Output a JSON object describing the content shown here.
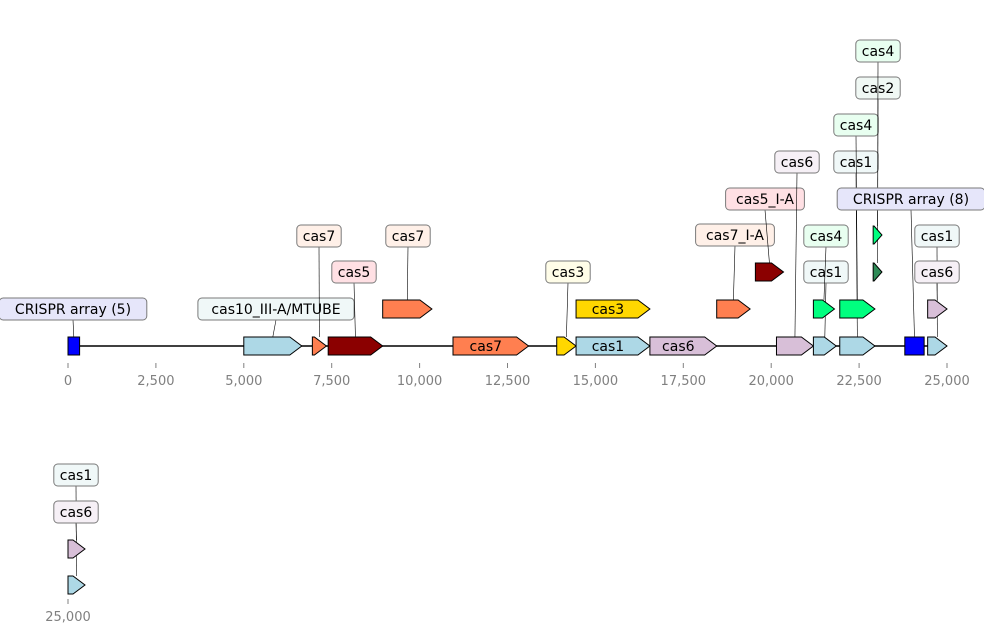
{
  "chart_data": {
    "type": "gene-map",
    "tracks": [
      {
        "name": "",
        "xrange": [
          0,
          25000
        ],
        "ticks": [
          0,
          2500,
          5000,
          7500,
          10000,
          12500,
          15000,
          17500,
          20000,
          22500,
          25000
        ],
        "tick_labels": [
          "0",
          "2,500",
          "5,000",
          "7,500",
          "10,000",
          "12,500",
          "15,000",
          "17,500",
          "20,000",
          "22,500",
          "25,000"
        ],
        "features": [
          {
            "id": "crispr5",
            "start": 0,
            "end": 330,
            "strand": 0,
            "row": 0,
            "color": "#0000ff",
            "label": "CRISPR array (5)",
            "label_pos": "above",
            "label_fill": "#e6e6fa"
          },
          {
            "id": "cas10",
            "start": 5000,
            "end": 6650,
            "strand": 1,
            "row": 0,
            "color": "#add8e6",
            "label": "cas10_III-A/MTUBE",
            "label_pos": "above",
            "label_fill": "#f0f8f8"
          },
          {
            "id": "cas7a",
            "start": 6950,
            "end": 7350,
            "strand": 1,
            "row": 0,
            "color": "#ff7f50",
            "label": "cas7",
            "label_pos": "above",
            "label_fill": "#fff0e8"
          },
          {
            "id": "cas5",
            "start": 7400,
            "end": 8950,
            "strand": 1,
            "row": 0,
            "color": "#8b0000",
            "label": "cas5",
            "label_pos": "above",
            "label_fill": "#ffe0e4"
          },
          {
            "id": "cas7b",
            "start": 8950,
            "end": 10350,
            "strand": 1,
            "row": 1,
            "color": "#ff7f50",
            "label": "cas7",
            "label_pos": "above",
            "label_fill": "#fff0e8"
          },
          {
            "id": "cas7c",
            "start": 10950,
            "end": 13100,
            "strand": 1,
            "row": 0,
            "color": "#ff7f50",
            "label": "cas7",
            "label_pos": "inside"
          },
          {
            "id": "cas3a",
            "start": 13900,
            "end": 14450,
            "strand": 1,
            "row": 0,
            "color": "#ffd700",
            "label": "cas3",
            "label_pos": "above",
            "label_fill": "#fffde8"
          },
          {
            "id": "cas3b",
            "start": 14450,
            "end": 16550,
            "strand": 1,
            "row": 1,
            "color": "#ffd700",
            "label": "cas3",
            "label_pos": "inside"
          },
          {
            "id": "cas1a",
            "start": 14450,
            "end": 16550,
            "strand": 1,
            "row": 0,
            "color": "#add8e6",
            "label": "cas1",
            "label_pos": "inside"
          },
          {
            "id": "cas6a",
            "start": 16550,
            "end": 18450,
            "strand": 1,
            "row": 0,
            "color": "#d8bfd8",
            "label": "cas6",
            "label_pos": "inside"
          },
          {
            "id": "cas7ia",
            "start": 18450,
            "end": 19400,
            "strand": 1,
            "row": 1,
            "color": "#ff7f50",
            "label": "cas7_I-A",
            "label_pos": "above",
            "label_fill": "#fff0e8"
          },
          {
            "id": "cas5ia",
            "start": 19550,
            "end": 20350,
            "strand": 1,
            "row": 2,
            "color": "#8b0000",
            "label": "cas5_I-A",
            "label_pos": "above",
            "label_fill": "#ffe0e4"
          },
          {
            "id": "cas6b",
            "start": 20150,
            "end": 21200,
            "strand": 1,
            "row": 0,
            "color": "#d8bfd8",
            "label": "cas6",
            "label_pos": "above",
            "label_fill": "#f6f0f6"
          },
          {
            "id": "cas1b",
            "start": 21200,
            "end": 21850,
            "strand": 1,
            "row": 0,
            "color": "#add8e6",
            "label": "cas1",
            "label_pos": "above",
            "label_fill": "#f0f8f8"
          },
          {
            "id": "cas4a",
            "start": 21200,
            "end": 21800,
            "strand": 1,
            "row": 1,
            "color": "#00ff7f",
            "label": "cas4",
            "label_pos": "above",
            "label_fill": "#e8fff0"
          },
          {
            "id": "cas1c",
            "start": 21950,
            "end": 22950,
            "strand": 1,
            "row": 0,
            "color": "#add8e6",
            "label": "cas1",
            "label_pos": "above",
            "label_fill": "#f0f8f8"
          },
          {
            "id": "cas4b",
            "start": 21950,
            "end": 22950,
            "strand": 1,
            "row": 1,
            "color": "#00ff7f",
            "label": "cas4",
            "label_pos": "above",
            "label_fill": "#e8fff0"
          },
          {
            "id": "cas2",
            "start": 22900,
            "end": 23150,
            "strand": 1,
            "row": 2,
            "color": "#2e8b57",
            "label": "cas2",
            "label_pos": "above",
            "label_fill": "#f0f8f4"
          },
          {
            "id": "cas4c",
            "start": 22900,
            "end": 23150,
            "strand": 1,
            "row": 3,
            "color": "#00ff7f",
            "label": "cas4",
            "label_pos": "above",
            "label_fill": "#e8fff0"
          },
          {
            "id": "crispr8",
            "start": 23800,
            "end": 24350,
            "strand": 0,
            "row": 0,
            "color": "#0000ff",
            "label": "CRISPR array (8)",
            "label_pos": "above",
            "label_fill": "#e6e6fa"
          },
          {
            "id": "cas1d",
            "start": 24450,
            "end": 25000,
            "strand": 1,
            "row": 0,
            "color": "#add8e6",
            "label": "cas1",
            "label_pos": "above",
            "label_fill": "#f0f8f8"
          },
          {
            "id": "cas6c",
            "start": 24450,
            "end": 25000,
            "strand": 1,
            "row": 1,
            "color": "#d8bfd8",
            "label": "cas6",
            "label_pos": "above",
            "label_fill": "#f6f0f6"
          }
        ]
      },
      {
        "name": "",
        "xrange": [
          25000,
          25500
        ],
        "ticks": [
          25000
        ],
        "tick_labels": [
          "25,000"
        ],
        "features": [
          {
            "id": "cas1e",
            "start": 25000,
            "end": 25500,
            "strand": 1,
            "row": 0,
            "color": "#add8e6",
            "label": "cas1",
            "label_pos": "above",
            "label_fill": "#f0f8f8"
          },
          {
            "id": "cas6d",
            "start": 25000,
            "end": 25500,
            "strand": 1,
            "row": 1,
            "color": "#d8bfd8",
            "label": "cas6",
            "label_pos": "above",
            "label_fill": "#f6f0f6"
          }
        ]
      }
    ]
  }
}
